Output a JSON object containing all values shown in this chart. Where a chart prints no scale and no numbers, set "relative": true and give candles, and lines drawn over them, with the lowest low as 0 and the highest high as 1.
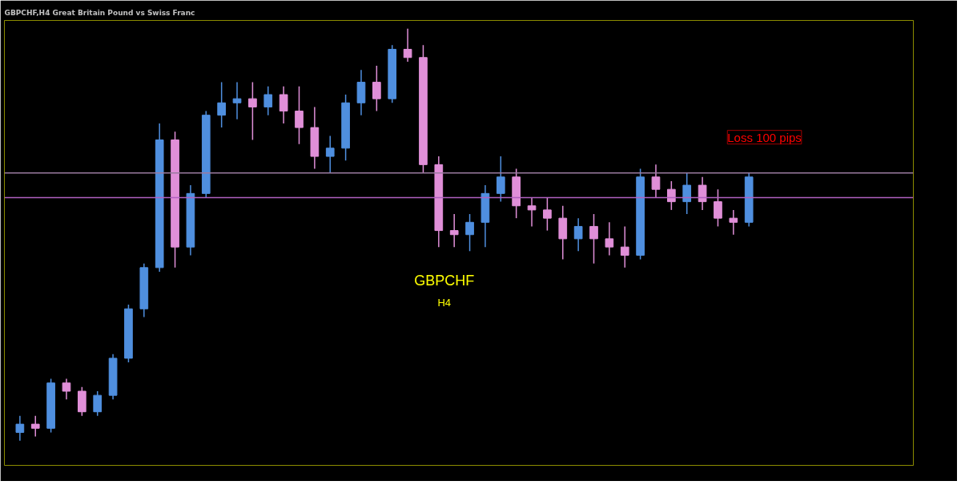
{
  "chart_data": {
    "type": "candlestick",
    "title": "GBPCHF,H4  Great Britain Pound vs Swiss Franc",
    "relative": true,
    "grid": false,
    "categories": [
      null,
      null,
      null,
      null,
      null,
      null,
      null,
      null,
      null,
      null,
      null,
      null,
      null,
      null,
      null,
      null,
      null,
      null,
      null,
      null,
      null,
      null,
      null,
      null,
      null,
      null,
      null,
      null,
      null,
      null,
      null,
      null,
      null,
      null,
      null,
      null,
      null,
      null,
      null,
      null,
      null,
      null,
      null,
      null,
      null,
      null,
      null,
      null
    ],
    "ohlc": [
      [
        0.02,
        0.06,
        0,
        0.04
      ],
      [
        0.04,
        0.06,
        0.01,
        0.03
      ],
      [
        0.03,
        0.15,
        0.02,
        0.14
      ],
      [
        0.14,
        0.15,
        0.1,
        0.12
      ],
      [
        0.12,
        0.13,
        0.06,
        0.07
      ],
      [
        0.07,
        0.12,
        0.06,
        0.11
      ],
      [
        0.11,
        0.21,
        0.1,
        0.2
      ],
      [
        0.2,
        0.33,
        0.19,
        0.32
      ],
      [
        0.32,
        0.43,
        0.3,
        0.42
      ],
      [
        0.42,
        0.77,
        0.41,
        0.73
      ],
      [
        0.73,
        0.75,
        0.42,
        0.47
      ],
      [
        0.47,
        0.62,
        0.45,
        0.6
      ],
      [
        0.6,
        0.8,
        0.59,
        0.79
      ],
      [
        0.79,
        0.87,
        0.76,
        0.82
      ],
      [
        0.82,
        0.87,
        0.78,
        0.83
      ],
      [
        0.83,
        0.87,
        0.73,
        0.81
      ],
      [
        0.81,
        0.86,
        0.79,
        0.84
      ],
      [
        0.84,
        0.86,
        0.77,
        0.8
      ],
      [
        0.8,
        0.86,
        0.72,
        0.76
      ],
      [
        0.76,
        0.81,
        0.66,
        0.69
      ],
      [
        0.69,
        0.74,
        0.65,
        0.71
      ],
      [
        0.71,
        0.84,
        0.68,
        0.82
      ],
      [
        0.82,
        0.9,
        0.79,
        0.87
      ],
      [
        0.87,
        0.91,
        0.8,
        0.83
      ],
      [
        0.83,
        0.96,
        0.82,
        0.95
      ],
      [
        0.95,
        1.0,
        0.92,
        0.93
      ],
      [
        0.93,
        0.96,
        0.65,
        0.67
      ],
      [
        0.67,
        0.69,
        0.47,
        0.51
      ],
      [
        0.51,
        0.55,
        0.47,
        0.5
      ],
      [
        0.5,
        0.55,
        0.46,
        0.53
      ],
      [
        0.53,
        0.62,
        0.47,
        0.6
      ],
      [
        0.6,
        0.69,
        0.58,
        0.64
      ],
      [
        0.64,
        0.66,
        0.54,
        0.57
      ],
      [
        0.57,
        0.59,
        0.52,
        0.56
      ],
      [
        0.56,
        0.59,
        0.51,
        0.54
      ],
      [
        0.54,
        0.57,
        0.44,
        0.49
      ],
      [
        0.49,
        0.54,
        0.46,
        0.52
      ],
      [
        0.52,
        0.55,
        0.43,
        0.49
      ],
      [
        0.49,
        0.53,
        0.45,
        0.47
      ],
      [
        0.47,
        0.52,
        0.42,
        0.45
      ],
      [
        0.45,
        0.66,
        0.44,
        0.64
      ],
      [
        0.64,
        0.67,
        0.59,
        0.61
      ],
      [
        0.61,
        0.63,
        0.56,
        0.58
      ],
      [
        0.58,
        0.65,
        0.55,
        0.62
      ],
      [
        0.62,
        0.64,
        0.56,
        0.58
      ],
      [
        0.58,
        0.61,
        0.52,
        0.54
      ],
      [
        0.54,
        0.56,
        0.5,
        0.53
      ],
      [
        0.53,
        0.65,
        0.52,
        0.64
      ]
    ],
    "colors": [
      "#4f8fdf",
      "#e08fd8",
      "#4f8fdf",
      "#e08fd8",
      "#e08fd8",
      "#4f8fdf",
      "#4f8fdf",
      "#4f8fdf",
      "#4f8fdf",
      "#4f8fdf",
      "#e08fd8",
      "#4f8fdf",
      "#4f8fdf",
      "#4f8fdf",
      "#4f8fdf",
      "#e08fd8",
      "#4f8fdf",
      "#e08fd8",
      "#e08fd8",
      "#e08fd8",
      "#4f8fdf",
      "#4f8fdf",
      "#4f8fdf",
      "#e08fd8",
      "#4f8fdf",
      "#e08fd8",
      "#e08fd8",
      "#e08fd8",
      "#e08fd8",
      "#4f8fdf",
      "#4f8fdf",
      "#4f8fdf",
      "#e08fd8",
      "#e08fd8",
      "#e08fd8",
      "#e08fd8",
      "#4f8fdf",
      "#e08fd8",
      "#e08fd8",
      "#e08fd8",
      "#4f8fdf",
      "#e08fd8",
      "#e08fd8",
      "#4f8fdf",
      "#e08fd8",
      "#e08fd8",
      "#e08fd8",
      "#4f8fdf"
    ],
    "ref_lines": [
      {
        "axis": "y",
        "value": 0.65,
        "color": "#9a7aa0"
      },
      {
        "axis": "y",
        "value": 0.59,
        "color": "#b060c0"
      }
    ],
    "annotations": [
      "GBPCHF",
      "H4",
      "Loss 100 pips"
    ]
  }
}
